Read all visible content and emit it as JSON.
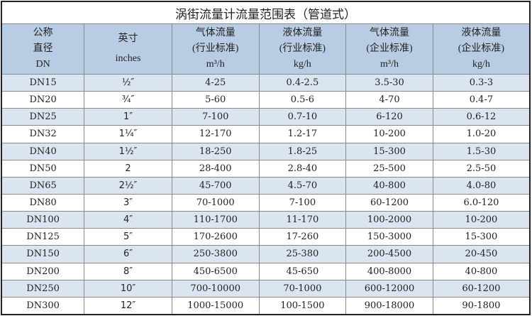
{
  "title": "涡街流量计流量范围表（管道式）",
  "headers": [
    {
      "l1": "公称",
      "l2": "直径",
      "l3": "DN"
    },
    {
      "l1": "英寸",
      "l2": "",
      "l3": "inches"
    },
    {
      "l1": "气体流量",
      "l2": "(行业标准)",
      "l3": "m³/h"
    },
    {
      "l1": "液体流量",
      "l2": "(行业标准)",
      "l3": "kg/h"
    },
    {
      "l1": "气体流量",
      "l2": "(企业标准)",
      "l3": "m³/h"
    },
    {
      "l1": "液体流量",
      "l2": "(企业标准)",
      "l3": "kg/h"
    }
  ],
  "rows": [
    [
      "DN15",
      "½″",
      "4-25",
      "0.4-2.5",
      "3.5-30",
      "0.3-3"
    ],
    [
      "DN20",
      "¾″",
      "5-60",
      "0.5-6",
      "4-70",
      "0.4-7"
    ],
    [
      "DN25",
      "1″",
      "7-100",
      "0.7-10",
      "6-120",
      "0.6-12"
    ],
    [
      "DN32",
      "1¼″",
      "12-170",
      "1.2-17",
      "10-200",
      "1.0-20"
    ],
    [
      "DN40",
      "1½″",
      "18-250",
      "1.8-25",
      "15-300",
      "1.5-30"
    ],
    [
      "DN50",
      "2",
      "28-400",
      "2.8-40",
      "25-500",
      "2.5-50"
    ],
    [
      "DN65",
      "2½″",
      "45-700",
      "4.5-70",
      "40-800",
      "4.0-80"
    ],
    [
      "DN80",
      "3″",
      "70-1000",
      "7-100",
      "60-1200",
      "6.0-120"
    ],
    [
      "DN100",
      "4″",
      "110-1700",
      "11-170",
      "100-2000",
      "10-200"
    ],
    [
      "DN125",
      "5″",
      "170-2600",
      "17-260",
      "150-3000",
      "15-300"
    ],
    [
      "DN150",
      "6″",
      "250-3800",
      "25-380",
      "200-4500",
      "20-450"
    ],
    [
      "DN200",
      "8″",
      "450-6500",
      "45-650",
      "400-8000",
      "40-800"
    ],
    [
      "DN250",
      "10″",
      "700-10000",
      "70-1000",
      "600-12000",
      "60-1200"
    ],
    [
      "DN300",
      "12″",
      "1000-15000",
      "100-1500",
      "900-18000",
      "90-1800"
    ]
  ]
}
